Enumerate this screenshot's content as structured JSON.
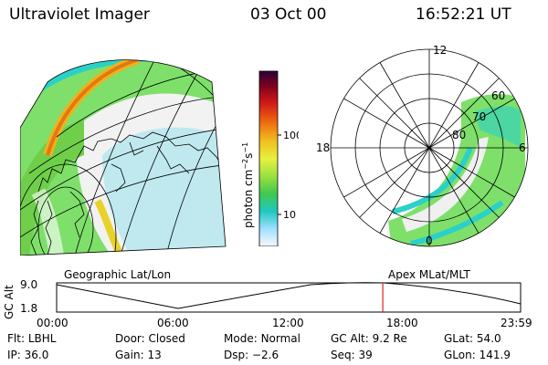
{
  "header": {
    "instrument": "Ultraviolet Imager",
    "date": "03 Oct 00",
    "time": "16:52:21 UT"
  },
  "colorbar": {
    "unit_label": "photon cm",
    "unit_sup1": "−2",
    "unit_s": "s",
    "unit_sup2": "−1",
    "tick_high": "100",
    "tick_low": "10"
  },
  "polar": {
    "label_top": "12",
    "label_bottom": "0",
    "label_left": "18",
    "label_right": "6",
    "lat_60": "60",
    "lat_70": "70",
    "lat_80": "80"
  },
  "captions": {
    "left": "Geographic Lat/Lon",
    "right": "Apex MLat/MLT"
  },
  "altitude_plot": {
    "ylabel": "GC Alt",
    "ytick_top": "9.0",
    "ytick_bottom": "1.8",
    "xticks": [
      "00:00",
      "06:00",
      "12:00",
      "18:00",
      "23:59"
    ],
    "marker_time_fraction": 0.703
  },
  "info": {
    "row1": [
      {
        "label": "Flt:",
        "value": "LBHL"
      },
      {
        "label": "Door:",
        "value": "Closed"
      },
      {
        "label": "Mode:",
        "value": "Normal"
      },
      {
        "label": "GC Alt:",
        "value": "9.2 Re"
      },
      {
        "label": "GLat:",
        "value": "54.0"
      }
    ],
    "row2": [
      {
        "label": "IP:",
        "value": "36.0"
      },
      {
        "label": "Gain:",
        "value": "13"
      },
      {
        "label": "Dsp:",
        "value": "−2.6"
      },
      {
        "label": "Seq:",
        "value": "39"
      },
      {
        "label": "GLon:",
        "value": "141.9"
      }
    ]
  }
}
